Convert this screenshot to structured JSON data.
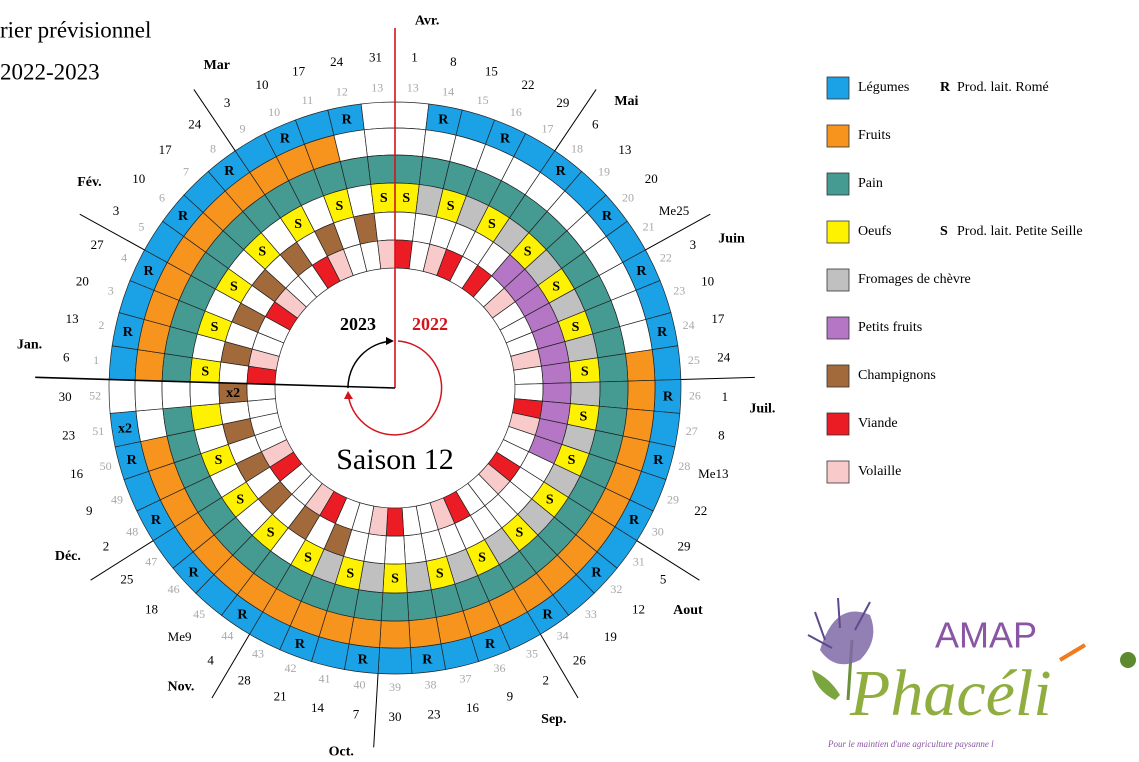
{
  "header": {
    "title": "rier prévisionnel",
    "subtitle": "2022-2023"
  },
  "wheel": {
    "months": [
      "Avr.",
      "Mai",
      "Juin",
      "Juil.",
      "Aout",
      "Sep.",
      "Oct.",
      "Nov.",
      "Déc.",
      "Jan.",
      "Fév.",
      "Mar"
    ],
    "dates": [
      "1",
      "8",
      "15",
      "22",
      "29",
      "6",
      "13",
      "20",
      "Me25",
      "3",
      "10",
      "17",
      "24",
      "1",
      "8",
      "Me13",
      "22",
      "29",
      "5",
      "12",
      "19",
      "26",
      "2",
      "9",
      "16",
      "23",
      "30",
      "7",
      "14",
      "21",
      "28",
      "4",
      "Me9",
      "18",
      "25",
      "2",
      "9",
      "16",
      "23",
      "30",
      "6",
      "13",
      "20",
      "27",
      "3",
      "10",
      "17",
      "24",
      "3",
      "10",
      "17",
      "24",
      "31"
    ],
    "week_numbers": [
      13,
      14,
      15,
      16,
      17,
      18,
      19,
      20,
      21,
      22,
      23,
      24,
      25,
      26,
      27,
      28,
      29,
      30,
      31,
      32,
      33,
      34,
      35,
      36,
      37,
      38,
      39,
      40,
      41,
      42,
      43,
      44,
      45,
      46,
      47,
      48,
      49,
      50,
      51,
      52,
      1,
      2,
      3,
      4,
      5,
      6,
      7,
      8,
      9,
      10,
      11,
      12,
      13
    ],
    "center": {
      "year_left": "2023",
      "year_right": "2022",
      "season": "Saison 12"
    },
    "rings": [
      [
        null,
        {
          "fill": 0,
          "label": "R"
        },
        0,
        {
          "fill": 0,
          "label": "R"
        },
        0,
        {
          "fill": 0,
          "label": "R"
        },
        0,
        {
          "fill": 0,
          "label": "R"
        },
        0,
        {
          "fill": 0,
          "label": "R"
        },
        0,
        {
          "fill": 0,
          "label": "R"
        },
        0,
        {
          "fill": 0,
          "label": "R"
        },
        0,
        {
          "fill": 0,
          "label": "R"
        },
        0,
        {
          "fill": 0,
          "label": "R"
        },
        0,
        {
          "fill": 0,
          "label": "R"
        },
        0,
        {
          "fill": 0,
          "label": "R"
        },
        0,
        {
          "fill": 0,
          "label": "R"
        },
        0,
        {
          "fill": 0,
          "label": "R"
        },
        0,
        {
          "fill": 0,
          "label": "R"
        },
        0,
        {
          "fill": 0,
          "label": "R"
        },
        0,
        {
          "fill": 0,
          "label": "R"
        },
        0,
        {
          "fill": 0,
          "label": "R"
        },
        0,
        {
          "fill": 0,
          "label": "R"
        },
        0,
        {
          "fill": 0,
          "label": "R"
        },
        {
          "fill": 0,
          "label": "x2"
        },
        null,
        0,
        {
          "fill": 0,
          "label": "R"
        },
        0,
        {
          "fill": 0,
          "label": "R"
        },
        0,
        {
          "fill": 0,
          "label": "R"
        },
        0,
        {
          "fill": 0,
          "label": "R"
        },
        0,
        {
          "fill": 0,
          "label": "R"
        },
        0,
        {
          "fill": 0,
          "label": "R"
        },
        null
      ],
      [
        null,
        null,
        null,
        null,
        null,
        null,
        null,
        null,
        null,
        null,
        null,
        null,
        1,
        1,
        1,
        1,
        1,
        1,
        1,
        1,
        1,
        1,
        1,
        1,
        1,
        1,
        1,
        1,
        1,
        1,
        1,
        1,
        1,
        1,
        1,
        1,
        1,
        1,
        null,
        null,
        1,
        1,
        1,
        1,
        1,
        1,
        1,
        1,
        1,
        1,
        1,
        null,
        null
      ],
      [
        2,
        2,
        2,
        2,
        2,
        2,
        2,
        2,
        2,
        2,
        2,
        2,
        2,
        2,
        2,
        2,
        2,
        2,
        2,
        2,
        2,
        2,
        2,
        2,
        2,
        2,
        2,
        2,
        2,
        2,
        2,
        2,
        2,
        2,
        2,
        2,
        2,
        2,
        2,
        null,
        2,
        2,
        2,
        2,
        2,
        2,
        2,
        2,
        2,
        2,
        2,
        2,
        2
      ],
      [
        {
          "fill": 3,
          "label": "S"
        },
        4,
        {
          "fill": 3,
          "label": "S"
        },
        4,
        {
          "fill": 3,
          "label": "S"
        },
        4,
        {
          "fill": 3,
          "label": "S"
        },
        4,
        {
          "fill": 3,
          "label": "S"
        },
        4,
        {
          "fill": 3,
          "label": "S"
        },
        4,
        {
          "fill": 3,
          "label": "S"
        },
        4,
        {
          "fill": 3,
          "label": "S"
        },
        4,
        {
          "fill": 3,
          "label": "S"
        },
        4,
        {
          "fill": 3,
          "label": "S"
        },
        4,
        {
          "fill": 3,
          "label": "S"
        },
        4,
        {
          "fill": 3,
          "label": "S"
        },
        4,
        {
          "fill": 3,
          "label": "S"
        },
        4,
        {
          "fill": 3,
          "label": "S"
        },
        4,
        {
          "fill": 3,
          "label": "S"
        },
        4,
        {
          "fill": 3,
          "label": "S"
        },
        null,
        {
          "fill": 3,
          "label": "S"
        },
        null,
        {
          "fill": 3,
          "label": "S"
        },
        null,
        {
          "fill": 3,
          "label": "S"
        },
        null,
        3,
        null,
        {
          "fill": 3,
          "label": "S"
        },
        null,
        {
          "fill": 3,
          "label": "S"
        },
        null,
        {
          "fill": 3,
          "label": "S"
        },
        null,
        {
          "fill": 3,
          "label": "S"
        },
        null,
        {
          "fill": 3,
          "label": "S"
        },
        null,
        {
          "fill": 3,
          "label": "S"
        },
        null,
        {
          "fill": 3,
          "label": "S"
        }
      ],
      [
        null,
        null,
        null,
        null,
        null,
        null,
        5,
        5,
        5,
        5,
        5,
        5,
        5,
        5,
        5,
        5,
        5,
        null,
        null,
        null,
        null,
        null,
        null,
        null,
        null,
        null,
        null,
        null,
        null,
        6,
        null,
        6,
        null,
        6,
        null,
        6,
        null,
        6,
        null,
        {
          "fill": 6,
          "label": "x2"
        },
        null,
        6,
        null,
        6,
        null,
        6,
        null,
        6,
        null,
        6,
        null,
        6,
        null
      ],
      [
        7,
        null,
        8,
        7,
        null,
        7,
        null,
        8,
        null,
        null,
        null,
        8,
        null,
        null,
        7,
        8,
        null,
        null,
        7,
        8,
        null,
        null,
        7,
        8,
        null,
        null,
        7,
        8,
        null,
        null,
        7,
        8,
        null,
        null,
        7,
        8,
        null,
        null,
        null,
        null,
        7,
        8,
        null,
        null,
        7,
        8,
        null,
        null,
        7,
        8,
        null,
        null,
        8
      ]
    ]
  },
  "legend": [
    {
      "label": "Légumes",
      "color": "#1ba1e6",
      "note": {
        "letter": "R",
        "text": "Prod. lait. Romé"
      }
    },
    {
      "label": "Fruits",
      "color": "#f7941d"
    },
    {
      "label": "Pain",
      "color": "#459b92"
    },
    {
      "label": "Oeufs",
      "color": "#fff200",
      "note": {
        "letter": "S",
        "text": "Prod. lait. Petite Seille"
      }
    },
    {
      "label": "Fromages de chèvre",
      "color": "#c0c0c0"
    },
    {
      "label": "Petits fruits",
      "color": "#b676c6"
    },
    {
      "label": "Champignons",
      "color": "#a2693b"
    },
    {
      "label": "Viande",
      "color": "#ec1c24"
    },
    {
      "label": "Volaille",
      "color": "#f9caca"
    }
  ],
  "logo": {
    "name": "AMAP",
    "title": "Phacéli",
    "tagline": "Pour le maintien d'une agriculture paysanne l"
  }
}
